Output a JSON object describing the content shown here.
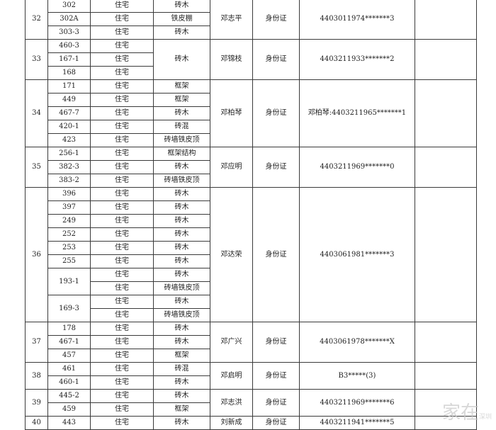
{
  "groups": [
    {
      "no": "32",
      "name": "邓志平",
      "id_type": "身份证",
      "id_number": "4403011974*******3",
      "remark": "",
      "rows": [
        {
          "lot": "302",
          "use": "住宅",
          "structure": "砖木"
        },
        {
          "lot": "302A",
          "use": "住宅",
          "structure": "铁皮棚"
        },
        {
          "lot": "303-3",
          "use": "住宅",
          "structure": "砖木"
        }
      ]
    },
    {
      "no": "33",
      "name": "邓锦枝",
      "id_type": "身份证",
      "id_number": "4403211933*******2",
      "remark": "",
      "merged_structure": "砖木",
      "rows": [
        {
          "lot": "460-3",
          "use": "住宅"
        },
        {
          "lot": "167-1",
          "use": "住宅"
        },
        {
          "lot": "168",
          "use": "住宅"
        }
      ]
    },
    {
      "no": "34",
      "name": "邓柏琴",
      "id_type": "身份证",
      "id_number": "邓柏琴:4403211965*******1",
      "remark": "",
      "rows": [
        {
          "lot": "171",
          "use": "住宅",
          "structure": "框架"
        },
        {
          "lot": "449",
          "use": "住宅",
          "structure": "框架"
        },
        {
          "lot": "467-7",
          "use": "住宅",
          "structure": "砖木"
        },
        {
          "lot": "420-1",
          "use": "住宅",
          "structure": "砖混"
        },
        {
          "lot": "423",
          "use": "住宅",
          "structure": "砖墙铁皮顶"
        }
      ]
    },
    {
      "no": "35",
      "name": "邓应明",
      "id_type": "身份证",
      "id_number": "4403211969*******0",
      "remark": "",
      "rows": [
        {
          "lot": "256-1",
          "use": "住宅",
          "structure": "框架结构"
        },
        {
          "lot": "382-3",
          "use": "住宅",
          "structure": "砖木"
        },
        {
          "lot": "383-2",
          "use": "住宅",
          "structure": "砖墙铁皮顶"
        }
      ]
    },
    {
      "no": "36",
      "name": "邓达荣",
      "id_type": "身份证",
      "id_number": "4403061981*******3",
      "remark": "",
      "rows": [
        {
          "lot": "396",
          "use": "住宅",
          "structure": "砖木"
        },
        {
          "lot": "397",
          "use": "住宅",
          "structure": "砖木"
        },
        {
          "lot": "249",
          "use": "住宅",
          "structure": "砖木"
        },
        {
          "lot": "252",
          "use": "住宅",
          "structure": "砖木"
        },
        {
          "lot": "253",
          "use": "住宅",
          "structure": "砖木"
        },
        {
          "lot": "255",
          "use": "住宅",
          "structure": "砖木"
        },
        {
          "lot": "193-1",
          "lot_span": 2,
          "use": "住宅",
          "structure": "砖木"
        },
        {
          "use": "住宅",
          "structure": "砖墙铁皮顶"
        },
        {
          "lot": "169-3",
          "lot_span": 2,
          "use": "住宅",
          "structure": "砖木"
        },
        {
          "use": "住宅",
          "structure": "砖墙铁皮顶"
        }
      ]
    },
    {
      "no": "37",
      "name": "邓广兴",
      "id_type": "身份证",
      "id_number": "4403061978*******X",
      "remark": "",
      "rows": [
        {
          "lot": "178",
          "use": "住宅",
          "structure": "砖木"
        },
        {
          "lot": "467-1",
          "use": "住宅",
          "structure": "砖木"
        },
        {
          "lot": "457",
          "use": "住宅",
          "structure": "框架"
        }
      ]
    },
    {
      "no": "38",
      "name": "邓启明",
      "id_type": "身份证",
      "id_number": "B3*****(3)",
      "remark": "",
      "rows": [
        {
          "lot": "461",
          "use": "住宅",
          "structure": "砖混"
        },
        {
          "lot": "460-1",
          "use": "住宅",
          "structure": "砖木"
        }
      ]
    },
    {
      "no": "39",
      "name": "邓志洪",
      "id_type": "身份证",
      "id_number": "4403211969*******6",
      "remark": "",
      "rows": [
        {
          "lot": "445-2",
          "use": "住宅",
          "structure": "砖木"
        },
        {
          "lot": "459",
          "use": "住宅",
          "structure": "框架"
        }
      ]
    },
    {
      "no": "40",
      "name": "刘新成",
      "id_type": "身份证",
      "id_number": "4403211941*******5",
      "remark": "",
      "rows": [
        {
          "lot": "443",
          "use": "住宅",
          "structure": "砖木"
        }
      ]
    }
  ],
  "watermark": {
    "main": "家在",
    "sub": "深圳"
  }
}
